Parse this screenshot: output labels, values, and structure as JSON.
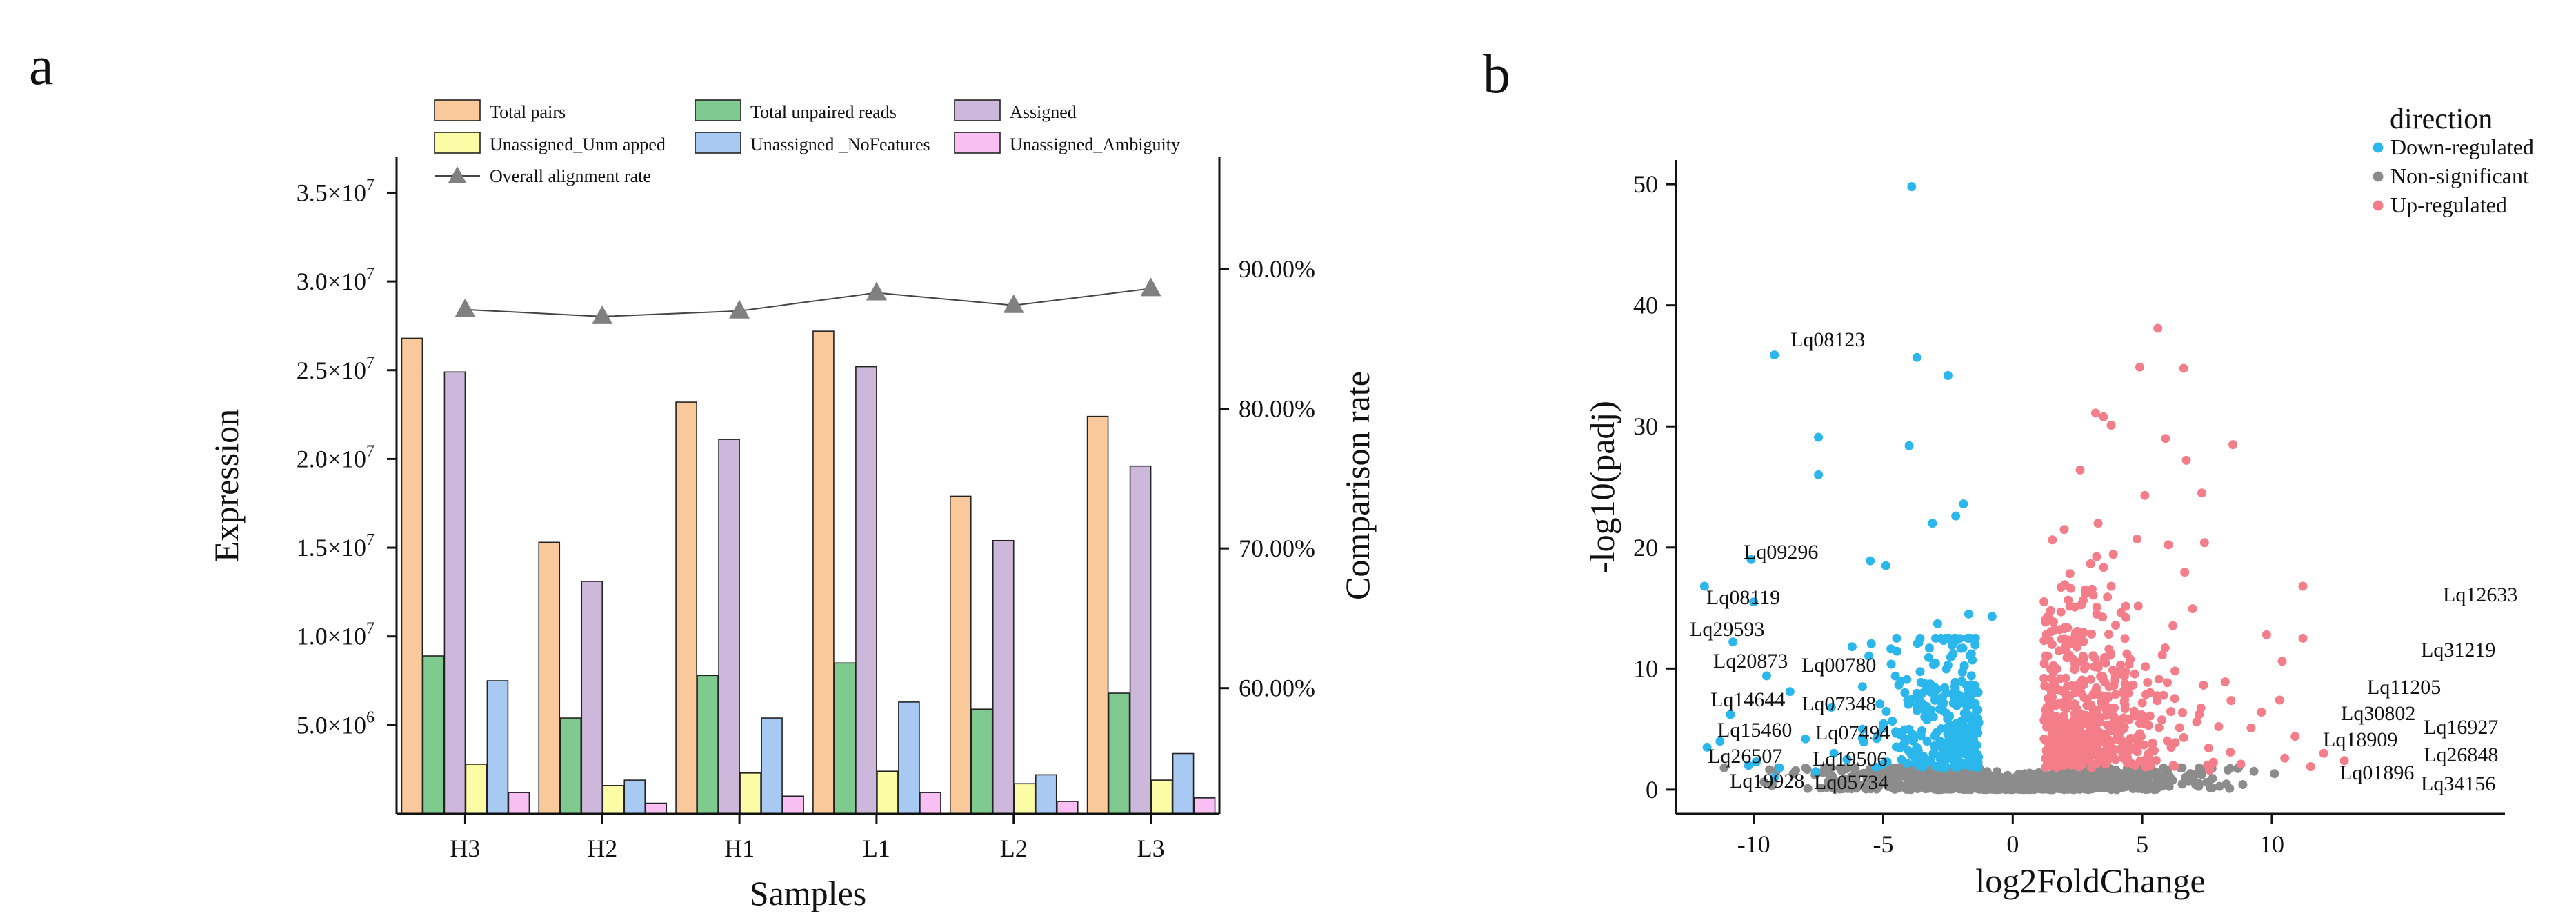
{
  "panels": {
    "a_label": "a",
    "b_label": "b"
  },
  "chart_data": [
    {
      "type": "bar",
      "title": "",
      "xlabel": "Samples",
      "ylabel": "Expression",
      "y2label": "Comparison rate",
      "ylim": [
        0,
        37000000
      ],
      "y2lim": [
        51,
        98
      ],
      "categories": [
        "H3",
        "H2",
        "H1",
        "L1",
        "L2",
        "L3"
      ],
      "yticks": [
        {
          "value": 5000000,
          "label": "5.0×10",
          "exp": "6"
        },
        {
          "value": 10000000,
          "label": "1.0×10",
          "exp": "7"
        },
        {
          "value": 15000000,
          "label": "1.5×10",
          "exp": "7"
        },
        {
          "value": 20000000,
          "label": "2.0×10",
          "exp": "7"
        },
        {
          "value": 25000000,
          "label": "2.5×10",
          "exp": "7"
        },
        {
          "value": 30000000,
          "label": "3.0×10",
          "exp": "7"
        },
        {
          "value": 35000000,
          "label": "3.5×10",
          "exp": "7"
        }
      ],
      "y2ticks": [
        {
          "value": 60,
          "label": "60.00%"
        },
        {
          "value": 70,
          "label": "70.00%"
        },
        {
          "value": 80,
          "label": "80.00%"
        },
        {
          "value": 90,
          "label": "90.00%"
        }
      ],
      "series": [
        {
          "name": "Total pairs",
          "color": "#F9C99C",
          "values": [
            26800000,
            15300000,
            23200000,
            27200000,
            17900000,
            22400000
          ]
        },
        {
          "name": "Total unpaired reads",
          "color": "#7FCB8F",
          "values": [
            8900000,
            5400000,
            7800000,
            8500000,
            5900000,
            6800000
          ]
        },
        {
          "name": "Assigned",
          "color": "#CDB8DB",
          "values": [
            24900000,
            13100000,
            21100000,
            25200000,
            15400000,
            19600000
          ]
        },
        {
          "name": "Unassigned_Unm apped",
          "color": "#FDFCA6",
          "values": [
            2800000,
            1600000,
            2300000,
            2400000,
            1700000,
            1900000
          ]
        },
        {
          "name": "Unassigned _NoFeatures",
          "color": "#A8C9F2",
          "values": [
            7500000,
            1900000,
            5400000,
            6300000,
            2200000,
            3400000
          ]
        },
        {
          "name": "Unassigned_Ambiguity",
          "color": "#F9BEF2",
          "values": [
            1200000,
            600000,
            1000000,
            1200000,
            700000,
            900000
          ]
        }
      ],
      "line_series": {
        "name": "Overall alignment rate",
        "color": "#808080",
        "values": [
          87.1,
          86.6,
          87.0,
          88.3,
          87.4,
          88.6
        ]
      }
    },
    {
      "type": "scatter",
      "title": "",
      "xlabel": "log2FoldChange",
      "ylabel": "-log10(padj)",
      "xlim": [
        -13,
        19
      ],
      "ylim": [
        -2,
        52
      ],
      "xticks": [
        -10,
        -5,
        0,
        5,
        10
      ],
      "yticks": [
        0,
        10,
        20,
        30,
        40,
        50
      ],
      "legend_title": "direction",
      "legend": [
        {
          "name": "Down-regulated",
          "color": "#2BB7EC"
        },
        {
          "name": "Non-significant",
          "color": "#8C8C8C"
        },
        {
          "name": "Up-regulated",
          "color": "#F47D8A"
        }
      ],
      "highlight_points": {
        "down": [
          [
            -3.9,
            49.8
          ],
          [
            -9.2,
            35.9
          ],
          [
            -3.7,
            35.7
          ],
          [
            -2.5,
            34.2
          ],
          [
            -7.5,
            29.1
          ],
          [
            -4.0,
            28.4
          ],
          [
            -7.5,
            26.0
          ],
          [
            -1.9,
            23.6
          ],
          [
            -2.2,
            22.6
          ],
          [
            -3.1,
            22.0
          ],
          [
            -10.1,
            19.0
          ],
          [
            -5.5,
            18.9
          ],
          [
            -4.9,
            18.5
          ],
          [
            -11.9,
            16.8
          ],
          [
            -10.0,
            15.5
          ],
          [
            -10.8,
            12.2
          ],
          [
            -6.2,
            11.8
          ],
          [
            -1.7,
            14.5
          ],
          [
            -2.9,
            13.7
          ],
          [
            -0.8,
            14.3
          ],
          [
            -5.8,
            8.5
          ],
          [
            -9.5,
            9.4
          ],
          [
            -8.6,
            8.1
          ],
          [
            -10.9,
            6.2
          ],
          [
            -11.3,
            4.0
          ],
          [
            -11.8,
            3.5
          ],
          [
            -7.0,
            6.8
          ],
          [
            -5.8,
            5.0
          ],
          [
            -8.0,
            4.2
          ],
          [
            -6.4,
            2.5
          ],
          [
            -7.6,
            1.5
          ],
          [
            -9.2,
            1.0
          ],
          [
            -10.2,
            2.0
          ],
          [
            -6.9,
            3.0
          ],
          [
            -9.9,
            2.3
          ],
          [
            -9.0,
            1.8
          ]
        ],
        "up": [
          [
            5.6,
            38.1
          ],
          [
            4.9,
            34.9
          ],
          [
            6.6,
            34.8
          ],
          [
            3.2,
            31.1
          ],
          [
            3.5,
            30.8
          ],
          [
            3.8,
            30.1
          ],
          [
            5.9,
            29.0
          ],
          [
            8.5,
            28.5
          ],
          [
            6.7,
            27.2
          ],
          [
            2.6,
            26.4
          ],
          [
            7.3,
            24.5
          ],
          [
            5.1,
            24.3
          ],
          [
            11.2,
            16.8
          ],
          [
            7.4,
            20.4
          ],
          [
            4.8,
            20.7
          ],
          [
            11.2,
            12.5
          ],
          [
            9.8,
            12.8
          ],
          [
            10.4,
            10.6
          ],
          [
            8.2,
            8.9
          ],
          [
            10.3,
            7.4
          ],
          [
            9.6,
            6.4
          ],
          [
            12.0,
            3.0
          ],
          [
            10.5,
            2.6
          ],
          [
            8.8,
            2.1
          ],
          [
            7.1,
            5.6
          ],
          [
            6.6,
            4.3
          ],
          [
            9.2,
            5.1
          ],
          [
            10.9,
            4.4
          ],
          [
            11.5,
            1.9
          ],
          [
            12.8,
            2.4
          ],
          [
            8.4,
            3.1
          ],
          [
            7.6,
            1.6
          ],
          [
            6.2,
            2.0
          ]
        ]
      },
      "gene_labels": [
        "Lq08123",
        "Lq09296",
        "Lq08119",
        "Lq29593",
        "Lq20873",
        "Lq00780",
        "Lq14644",
        "Lq07348",
        "Lq15460",
        "Lq07494",
        "Lq26507",
        "Lq19506",
        "Lq19928",
        "Lq05734",
        "Lq12633",
        "Lq31219",
        "Lq11205",
        "Lq30802",
        "Lq16927",
        "Lq18909",
        "Lq26848",
        "Lq01896",
        "Lq34156"
      ]
    }
  ]
}
